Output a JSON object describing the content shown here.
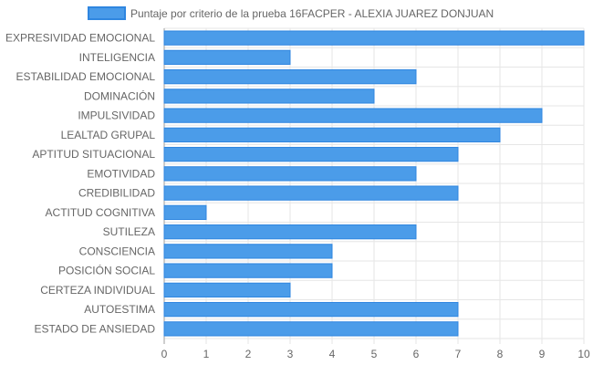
{
  "chart_data": {
    "type": "bar",
    "orientation": "horizontal",
    "title": "",
    "xlabel": "",
    "ylabel": "",
    "xlim": [
      0,
      10
    ],
    "x_ticks": [
      "0",
      "1",
      "2",
      "3",
      "4",
      "5",
      "6",
      "7",
      "8",
      "9",
      "10"
    ],
    "grid": true,
    "legend_position": "top",
    "categories": [
      "EXPRESIVIDAD EMOCIONAL",
      "INTELIGENCIA",
      "ESTABILIDAD EMOCIONAL",
      "DOMINACIÓN",
      "IMPULSIVIDAD",
      "LEALTAD GRUPAL",
      "APTITUD SITUACIONAL",
      "EMOTIVIDAD",
      "CREDIBILIDAD",
      "ACTITUD COGNITIVA",
      "SUTILEZA",
      "CONSCIENCIA",
      "POSICIÓN SOCIAL",
      "CERTEZA INDIVIDUAL",
      "AUTOESTIMA",
      "ESTADO DE ANSIEDAD"
    ],
    "series": [
      {
        "name": "Puntaje por criterio de la prueba 16FACPER - ALEXIA JUAREZ DONJUAN",
        "color": "#4b9ce9",
        "border_color": "#2f86e0",
        "values": [
          10,
          3,
          6,
          5,
          9,
          8,
          7,
          6,
          7,
          1,
          6,
          4,
          4,
          3,
          7,
          7
        ]
      }
    ]
  }
}
